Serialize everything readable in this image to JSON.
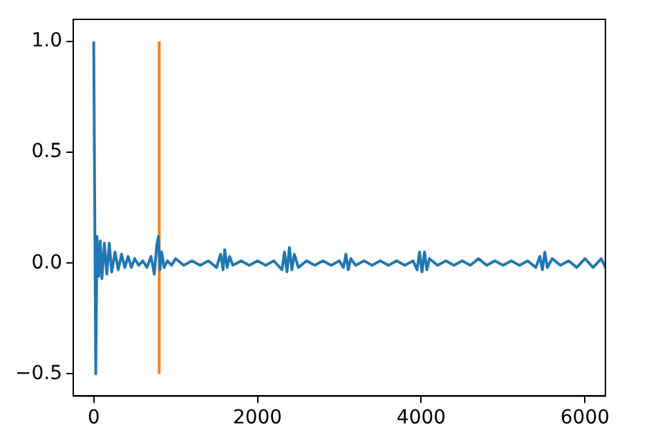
{
  "chart_data": {
    "type": "line",
    "xlim": [
      -250,
      6250
    ],
    "ylim": [
      -0.6,
      1.1
    ],
    "xticks": [
      0,
      2000,
      4000,
      6000
    ],
    "yticks": [
      {
        "value": -0.5,
        "label": "−0.5"
      },
      {
        "value": 0,
        "label": "0.0"
      },
      {
        "value": 0.5,
        "label": "0.5"
      },
      {
        "value": 1,
        "label": "1.0"
      }
    ],
    "grid": false,
    "legend": false,
    "marker": "none",
    "line_style": "solid",
    "series": [
      {
        "color": "#1f77b4",
        "x": [
          0,
          25,
          40,
          60,
          80,
          100,
          130,
          160,
          190,
          220,
          260,
          300,
          340,
          380,
          420,
          460,
          500,
          550,
          600,
          650,
          700,
          740,
          770,
          790,
          810,
          830,
          860,
          900,
          950,
          1000,
          1100,
          1200,
          1300,
          1400,
          1500,
          1550,
          1580,
          1600,
          1630,
          1660,
          1700,
          1800,
          1900,
          2000,
          2100,
          2200,
          2300,
          2330,
          2360,
          2390,
          2420,
          2450,
          2500,
          2600,
          2700,
          2800,
          2900,
          3000,
          3050,
          3080,
          3110,
          3140,
          3200,
          3300,
          3400,
          3500,
          3600,
          3700,
          3800,
          3900,
          3950,
          3980,
          4010,
          4040,
          4070,
          4100,
          4200,
          4300,
          4400,
          4500,
          4600,
          4700,
          4800,
          4900,
          5000,
          5100,
          5200,
          5300,
          5400,
          5450,
          5480,
          5510,
          5540,
          5600,
          5700,
          5800,
          5900,
          6000,
          6100,
          6200,
          6250
        ],
        "values": [
          1.0,
          -0.5,
          0.12,
          -0.06,
          0.1,
          -0.07,
          0.09,
          -0.05,
          0.09,
          -0.04,
          0.05,
          -0.03,
          0.04,
          -0.02,
          0.03,
          -0.02,
          0.02,
          -0.01,
          0.01,
          -0.02,
          0.03,
          -0.05,
          0.08,
          0.12,
          -0.03,
          0.05,
          -0.02,
          0.01,
          -0.01,
          0.02,
          -0.01,
          0.01,
          -0.01,
          0.01,
          -0.02,
          0.04,
          -0.03,
          0.06,
          -0.02,
          0.03,
          -0.01,
          0.01,
          -0.01,
          0.01,
          -0.01,
          0.01,
          -0.03,
          0.05,
          -0.04,
          0.07,
          -0.03,
          0.04,
          -0.02,
          0.01,
          -0.01,
          0.01,
          -0.01,
          0.01,
          -0.02,
          0.04,
          -0.03,
          0.02,
          -0.01,
          0.01,
          -0.01,
          0.01,
          -0.01,
          0.01,
          -0.01,
          0.01,
          -0.03,
          0.05,
          -0.04,
          0.05,
          -0.03,
          0.02,
          -0.01,
          0.01,
          -0.01,
          0.01,
          -0.01,
          0.02,
          -0.01,
          0.01,
          -0.01,
          0.01,
          -0.01,
          0.01,
          -0.02,
          0.03,
          -0.03,
          0.05,
          -0.02,
          0.02,
          -0.01,
          0.01,
          -0.02,
          0.02,
          -0.02,
          0.02,
          -0.02
        ]
      },
      {
        "color": "#ff7f0e",
        "x": [
          800,
          800
        ],
        "values": [
          -0.5,
          1.0
        ]
      }
    ]
  }
}
